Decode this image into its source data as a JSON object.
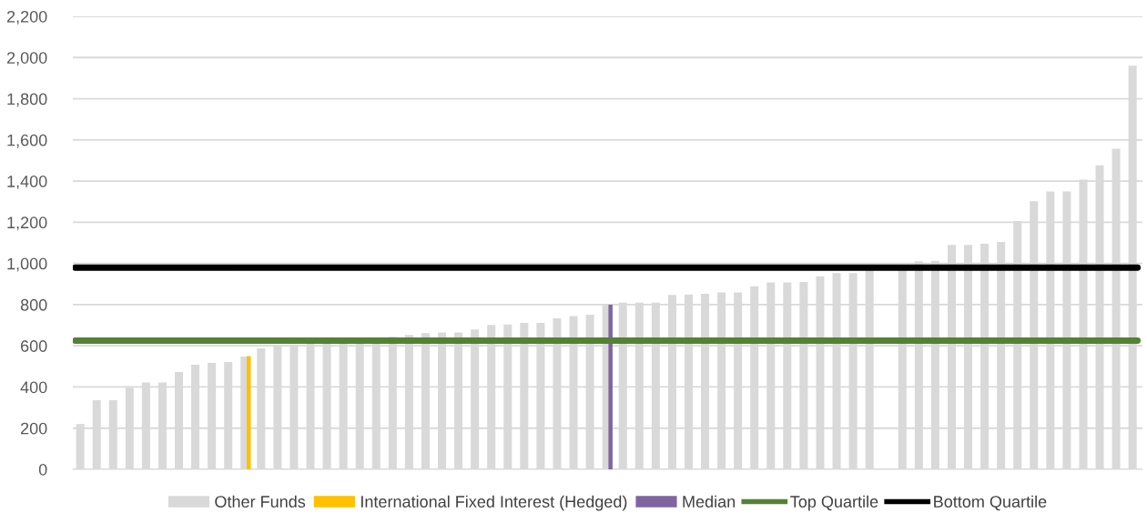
{
  "chart_data": {
    "type": "bar",
    "categories": [
      null,
      null,
      null,
      null,
      null,
      null,
      null,
      null,
      null,
      null,
      null,
      null,
      null,
      null,
      null,
      null,
      null,
      null,
      null,
      null,
      null,
      null,
      null,
      null,
      null,
      null,
      null,
      null,
      null,
      null,
      null,
      null,
      null,
      null,
      null,
      null,
      null,
      null,
      null,
      null,
      null,
      null,
      null,
      null,
      null,
      null,
      null,
      null,
      null,
      null,
      null,
      null,
      null,
      null,
      null,
      null,
      null,
      null,
      null,
      null,
      null,
      null,
      null,
      null,
      null
    ],
    "series": [
      {
        "name": "Other Funds",
        "color": "#d9d9d9",
        "values": [
          220,
          336,
          336,
          397,
          422,
          422,
          473,
          508,
          517,
          521,
          548,
          587,
          604,
          606,
          613,
          613,
          613,
          612,
          612,
          644,
          653,
          662,
          665,
          665,
          679,
          701,
          704,
          711,
          711,
          733,
          744,
          751,
          800,
          810,
          810,
          810,
          847,
          849,
          853,
          859,
          859,
          889,
          908,
          908,
          910,
          938,
          953,
          953,
          967,
          null,
          985,
          1010,
          1013,
          1090,
          1090,
          1096,
          1104,
          1206,
          1302,
          1350,
          1350,
          1407,
          1477,
          1557,
          1960
        ]
      },
      {
        "name": "International Fixed Interest (Hedged)",
        "color": "#ffc000",
        "values": [
          null,
          null,
          null,
          null,
          null,
          null,
          null,
          null,
          null,
          null,
          550,
          null,
          null,
          null,
          null,
          null,
          null,
          null,
          null,
          null,
          null,
          null,
          null,
          null,
          null,
          null,
          null,
          null,
          null,
          null,
          null,
          null,
          null,
          null,
          null,
          null,
          null,
          null,
          null,
          null,
          null,
          null,
          null,
          null,
          null,
          null,
          null,
          null,
          null,
          null,
          null,
          null,
          null,
          null,
          null,
          null,
          null,
          null,
          null,
          null,
          null,
          null,
          null,
          null,
          null
        ]
      },
      {
        "name": "Median",
        "color": "#8064a2",
        "values": [
          null,
          null,
          null,
          null,
          null,
          null,
          null,
          null,
          null,
          null,
          null,
          null,
          null,
          null,
          null,
          null,
          null,
          null,
          null,
          null,
          null,
          null,
          null,
          null,
          null,
          null,
          null,
          null,
          null,
          null,
          null,
          null,
          800,
          null,
          null,
          null,
          null,
          null,
          null,
          null,
          null,
          null,
          null,
          null,
          null,
          null,
          null,
          null,
          null,
          null,
          null,
          null,
          null,
          null,
          null,
          null,
          null,
          null,
          null,
          null,
          null,
          null,
          null,
          null,
          null
        ]
      }
    ],
    "ref_lines": [
      {
        "axis": "y",
        "value": 625,
        "label": "Top Quartile",
        "color": "#548235"
      },
      {
        "axis": "y",
        "value": 980,
        "label": "Bottom Quartile",
        "color": "#000000"
      }
    ],
    "ylim": [
      0,
      2200
    ],
    "yticks": [
      {
        "value": 0,
        "label": "0"
      },
      {
        "value": 200,
        "label": "200"
      },
      {
        "value": 400,
        "label": "400"
      },
      {
        "value": 600,
        "label": "600"
      },
      {
        "value": 800,
        "label": "800"
      },
      {
        "value": 1000,
        "label": "1,000"
      },
      {
        "value": 1200,
        "label": "1,200"
      },
      {
        "value": 1400,
        "label": "1,400"
      },
      {
        "value": 1600,
        "label": "1,600"
      },
      {
        "value": 1800,
        "label": "1,800"
      },
      {
        "value": 2000,
        "label": "2,000"
      },
      {
        "value": 2200,
        "label": "2,200"
      }
    ],
    "grid": "y",
    "legend": "bottom"
  }
}
